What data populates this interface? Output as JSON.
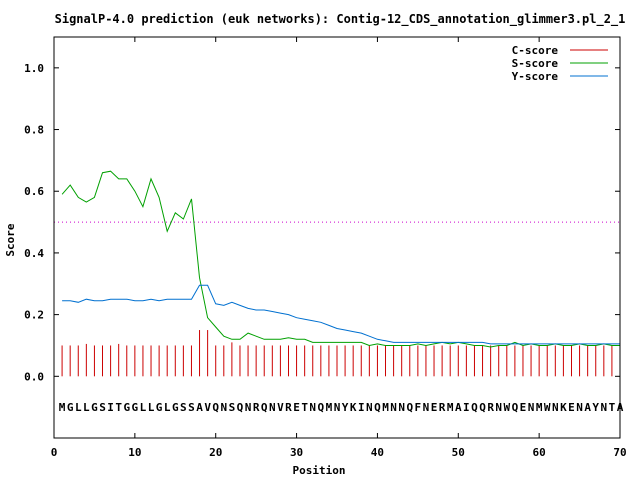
{
  "chart_data": {
    "type": "line",
    "title": "SignalP-4.0 prediction (euk networks): Contig-12_CDS_annotation_glimmer3.pl_2_1",
    "xlabel": "Position",
    "ylabel": "Score",
    "xlim": [
      0,
      70
    ],
    "ylim": [
      -0.2,
      1.1
    ],
    "x_ticks": [
      0,
      10,
      20,
      30,
      40,
      50,
      60,
      70
    ],
    "y_ticks": [
      0.0,
      0.2,
      0.4,
      0.6,
      0.8,
      1.0
    ],
    "x_tick_labels": [
      "0",
      "10",
      "20",
      "30",
      "40",
      "50",
      "60",
      "70"
    ],
    "y_tick_labels": [
      "0.0",
      "0.2",
      "0.4",
      "0.6",
      "0.8",
      "1.0"
    ],
    "threshold": 0.5,
    "legend_position": "top-right",
    "sequence": "MGLLGSITGGLLGLGSSAVQNSQNRQNVRETNQMNYKINQMNNQFNERMAIQQRNWQENMWNKENAYNTA",
    "series": [
      {
        "name": "C-score",
        "style": "impulse",
        "color": "#cc0000",
        "values": [
          0.1,
          0.1,
          0.1,
          0.105,
          0.1,
          0.1,
          0.1,
          0.105,
          0.1,
          0.1,
          0.1,
          0.1,
          0.1,
          0.1,
          0.1,
          0.1,
          0.1,
          0.15,
          0.15,
          0.1,
          0.1,
          0.11,
          0.1,
          0.1,
          0.1,
          0.1,
          0.1,
          0.1,
          0.1,
          0.1,
          0.1,
          0.1,
          0.1,
          0.1,
          0.1,
          0.1,
          0.1,
          0.1,
          0.1,
          0.1,
          0.1,
          0.1,
          0.1,
          0.1,
          0.1,
          0.1,
          0.1,
          0.1,
          0.1,
          0.1,
          0.1,
          0.1,
          0.1,
          0.1,
          0.1,
          0.1,
          0.1,
          0.1,
          0.1,
          0.1,
          0.1,
          0.1,
          0.1,
          0.1,
          0.1,
          0.1,
          0.1,
          0.1,
          0.1,
          0.1
        ]
      },
      {
        "name": "S-score",
        "style": "line",
        "color": "#00a000",
        "values": [
          0.59,
          0.62,
          0.58,
          0.565,
          0.58,
          0.66,
          0.665,
          0.64,
          0.64,
          0.6,
          0.55,
          0.64,
          0.58,
          0.47,
          0.53,
          0.51,
          0.575,
          0.32,
          0.19,
          0.16,
          0.13,
          0.12,
          0.12,
          0.14,
          0.13,
          0.12,
          0.12,
          0.12,
          0.125,
          0.12,
          0.12,
          0.11,
          0.11,
          0.11,
          0.11,
          0.11,
          0.11,
          0.11,
          0.1,
          0.105,
          0.1,
          0.1,
          0.1,
          0.1,
          0.105,
          0.1,
          0.105,
          0.11,
          0.105,
          0.11,
          0.105,
          0.1,
          0.1,
          0.095,
          0.1,
          0.1,
          0.11,
          0.1,
          0.105,
          0.1,
          0.1,
          0.105,
          0.1,
          0.1,
          0.105,
          0.1,
          0.1,
          0.105,
          0.1,
          0.1
        ]
      },
      {
        "name": "Y-score",
        "style": "line",
        "color": "#0070d0",
        "values": [
          0.245,
          0.245,
          0.24,
          0.25,
          0.245,
          0.245,
          0.25,
          0.25,
          0.25,
          0.245,
          0.245,
          0.25,
          0.245,
          0.25,
          0.25,
          0.25,
          0.25,
          0.295,
          0.295,
          0.235,
          0.23,
          0.24,
          0.23,
          0.22,
          0.215,
          0.215,
          0.21,
          0.205,
          0.2,
          0.19,
          0.185,
          0.18,
          0.175,
          0.165,
          0.155,
          0.15,
          0.145,
          0.14,
          0.13,
          0.12,
          0.115,
          0.11,
          0.11,
          0.11,
          0.11,
          0.11,
          0.11,
          0.11,
          0.11,
          0.11,
          0.11,
          0.11,
          0.11,
          0.105,
          0.105,
          0.105,
          0.105,
          0.105,
          0.105,
          0.105,
          0.105,
          0.105,
          0.105,
          0.105,
          0.105,
          0.105,
          0.105,
          0.105,
          0.105,
          0.105
        ]
      }
    ]
  }
}
